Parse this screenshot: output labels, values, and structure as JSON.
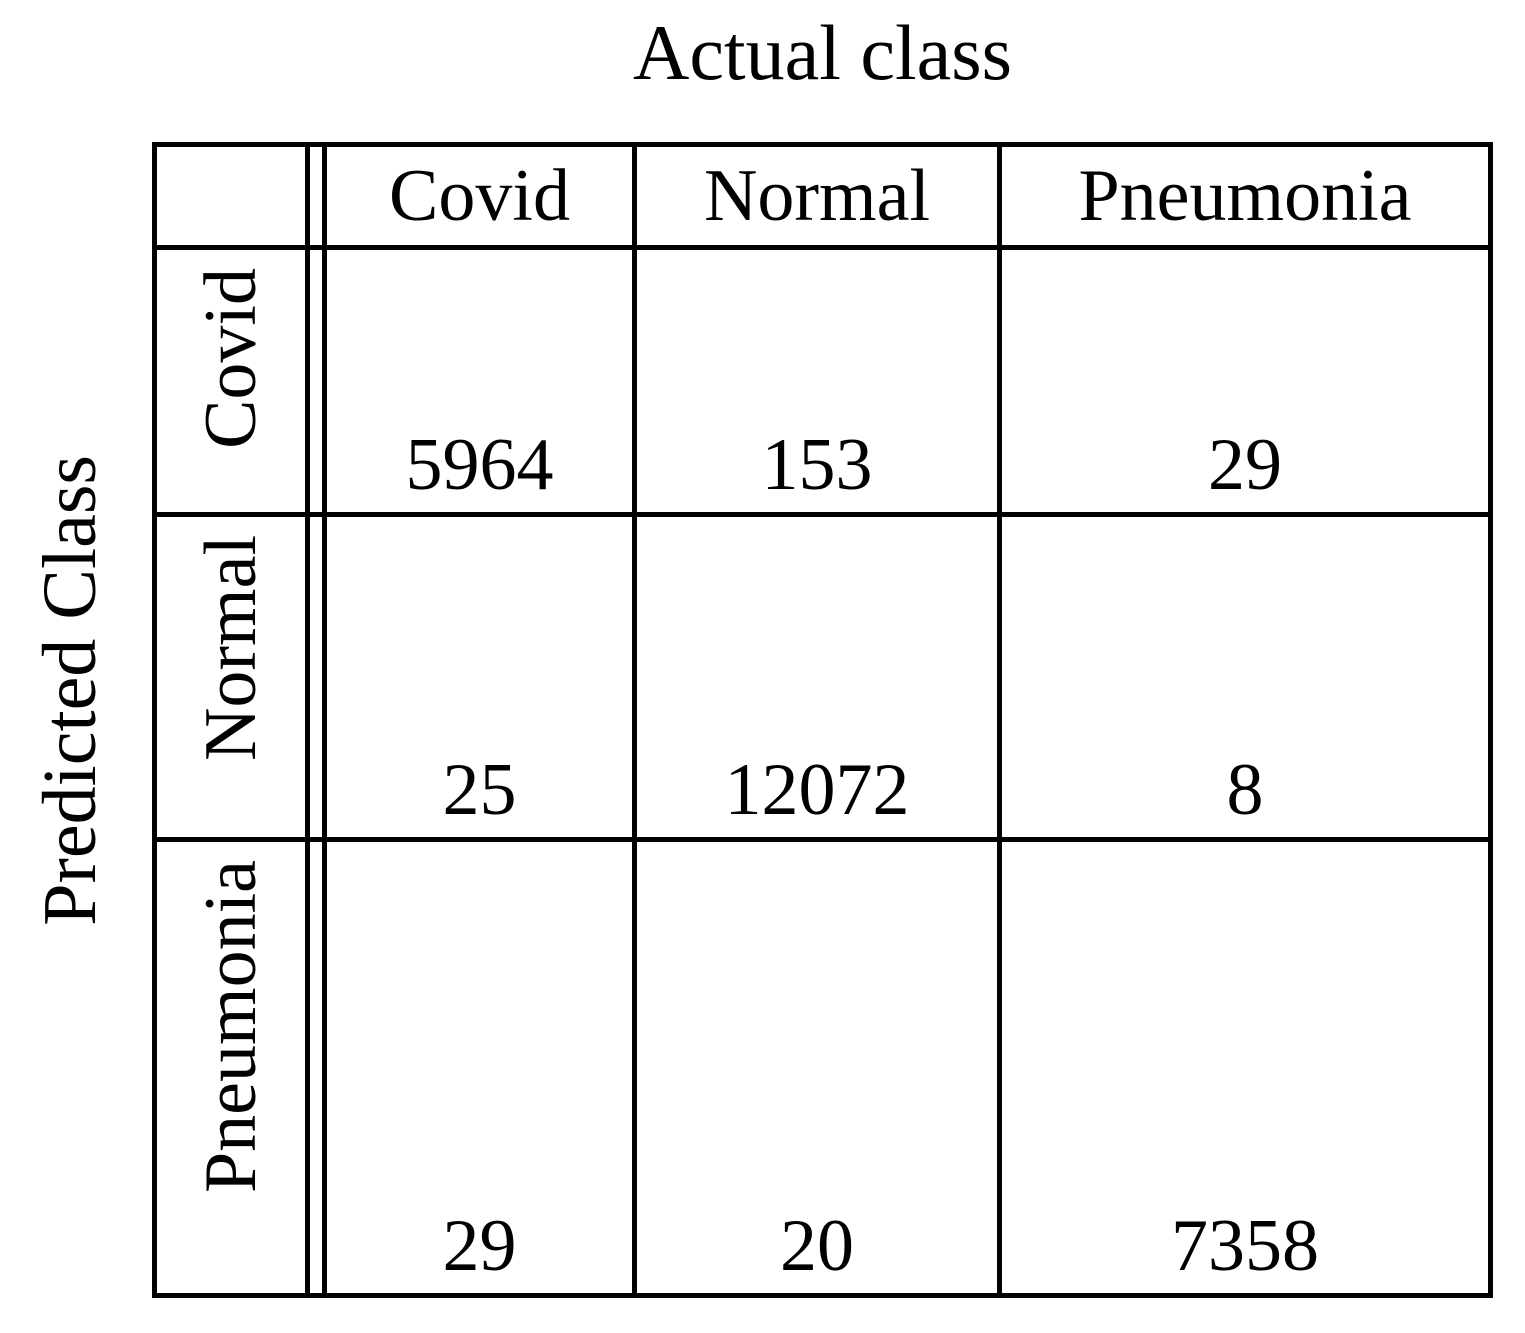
{
  "figure": {
    "top_axis_label": "Actual class",
    "left_axis_label": "Predicted Class"
  },
  "chart_data": {
    "type": "table",
    "subtype": "confusion_matrix",
    "title": "Actual class",
    "col_axis_label": "Actual class",
    "row_axis_label": "Predicted Class",
    "col_labels": [
      "Covid",
      "Normal",
      "Pneumonia"
    ],
    "row_labels": [
      "Covid",
      "Normal",
      "Pneumonia"
    ],
    "matrix": [
      [
        5964,
        153,
        29
      ],
      [
        25,
        12072,
        8
      ],
      [
        29,
        20,
        7358
      ]
    ],
    "layout_hints": {
      "double_vertical_rule_after_row_labels": true,
      "values_bottom_aligned": true,
      "row_labels_rotated_90deg": true
    }
  },
  "colors": {
    "text": "#000000",
    "background": "#ffffff",
    "grid_lines": "#000000"
  }
}
